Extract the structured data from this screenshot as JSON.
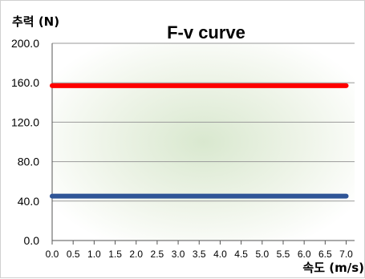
{
  "chart_data": {
    "type": "line",
    "title": "F-v curve",
    "ylabel": "추력 (N)",
    "xlabel": "속도 (m/s)",
    "x": [
      0.0,
      0.5,
      1.0,
      1.5,
      2.0,
      2.5,
      3.0,
      3.5,
      4.0,
      4.5,
      5.0,
      5.5,
      6.0,
      6.5,
      7.0
    ],
    "xticks": [
      "0.0",
      "0.5",
      "1.0",
      "1.5",
      "2.0",
      "2.5",
      "3.0",
      "3.5",
      "4.0",
      "4.5",
      "5.0",
      "5.5",
      "6.0",
      "6.5",
      "7.0"
    ],
    "yticks": [
      "0.0",
      "40.0",
      "80.0",
      "120.0",
      "160.0",
      "200.0"
    ],
    "xlim": [
      0,
      7.2
    ],
    "ylim": [
      0,
      200
    ],
    "grid": true,
    "series": [
      {
        "color": "#ff0000",
        "values": [
          157,
          157,
          157,
          157,
          157,
          157,
          157,
          157,
          157,
          157,
          157,
          157,
          157,
          157,
          157
        ]
      },
      {
        "color": "#2f5597",
        "values": [
          45,
          45,
          45,
          45,
          45,
          45,
          45,
          45,
          45,
          45,
          45,
          45,
          45,
          45,
          45
        ]
      }
    ]
  }
}
